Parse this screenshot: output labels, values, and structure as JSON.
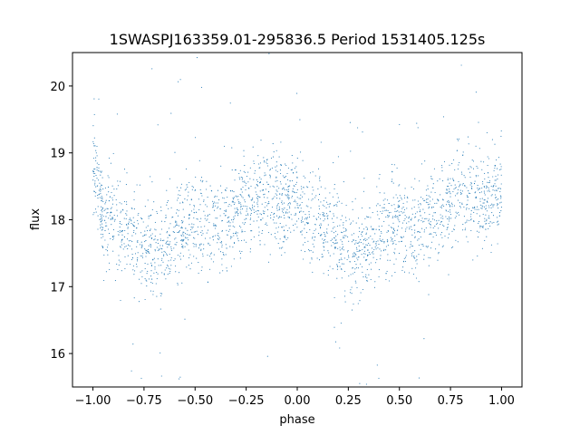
{
  "chart_data": {
    "type": "scatter",
    "title": "1SWASPJ163359.01-295836.5 Period 1531405.125s",
    "xlabel": "phase",
    "ylabel": "flux",
    "xlim": [
      -1.1,
      1.1
    ],
    "ylim": [
      15.5,
      20.5
    ],
    "xticks": [
      -1.0,
      -0.75,
      -0.5,
      -0.25,
      0.0,
      0.25,
      0.5,
      0.75,
      1.0
    ],
    "xtick_labels": [
      "−1.00",
      "−0.75",
      "−0.50",
      "−0.25",
      "0.00",
      "0.25",
      "0.50",
      "0.75",
      "1.00"
    ],
    "yticks": [
      16,
      17,
      18,
      19,
      20
    ],
    "ytick_labels": [
      "16",
      "17",
      "18",
      "19",
      "20"
    ],
    "grid": false,
    "legend": "none",
    "marker_color": "#1f77b4",
    "series": [
      {
        "phase_profile": {
          "x": [
            -1.0,
            -0.95,
            -0.9,
            -0.85,
            -0.8,
            -0.75,
            -0.7,
            -0.65,
            -0.6,
            -0.55,
            -0.5,
            -0.45,
            -0.4,
            -0.35,
            -0.3,
            -0.25,
            -0.2,
            -0.15,
            -0.1,
            -0.05,
            0.0,
            0.05,
            0.1,
            0.15,
            0.2,
            0.25,
            0.3,
            0.35,
            0.4,
            0.45,
            0.5,
            0.55,
            0.6,
            0.65,
            0.7,
            0.75,
            0.8,
            0.85,
            0.9,
            0.95,
            1.0
          ],
          "y": [
            18.9,
            18.0,
            17.95,
            17.9,
            17.7,
            17.55,
            17.45,
            17.6,
            17.75,
            17.9,
            18.0,
            17.85,
            17.9,
            17.95,
            18.05,
            18.2,
            18.35,
            18.3,
            18.25,
            18.2,
            18.4,
            18.0,
            17.95,
            17.9,
            17.7,
            17.55,
            17.45,
            17.6,
            17.75,
            17.9,
            18.0,
            17.85,
            17.9,
            17.95,
            18.05,
            18.2,
            18.35,
            18.3,
            18.25,
            18.2,
            18.6
          ]
        },
        "scatter_sigma": 0.35
      }
    ]
  }
}
